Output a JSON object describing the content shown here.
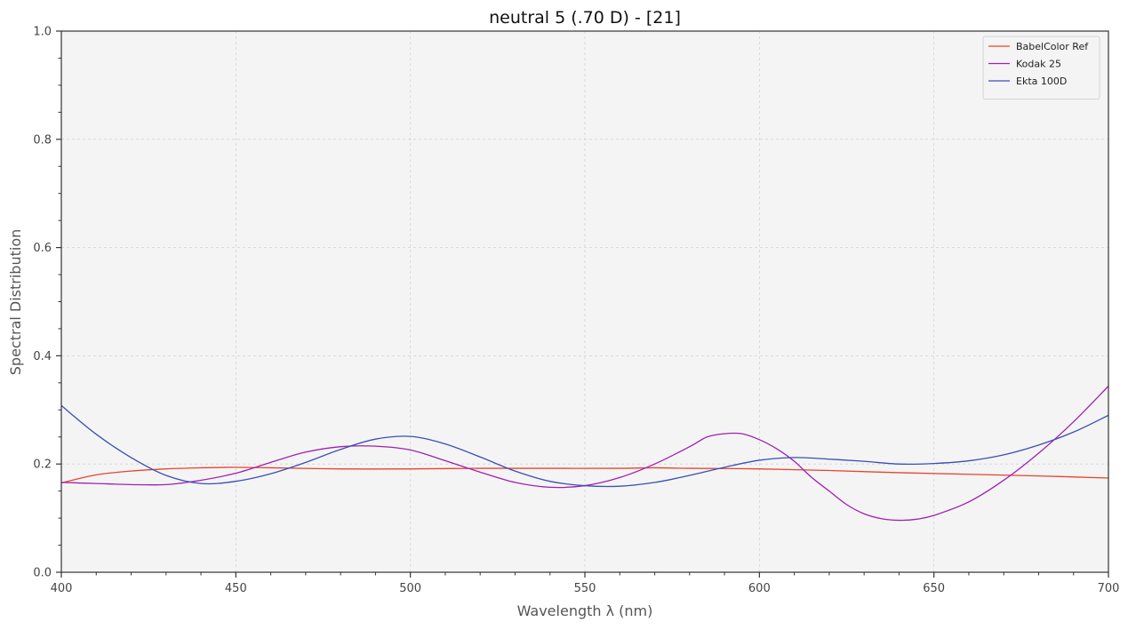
{
  "chart_data": {
    "type": "line",
    "title": "neutral 5 (.70 D) - [21]",
    "xlabel": "Wavelength λ (nm)",
    "ylabel": "Spectral Distribution",
    "xlim": [
      400,
      700
    ],
    "ylim": [
      0.0,
      1.0
    ],
    "xticks": [
      400,
      450,
      500,
      550,
      600,
      650,
      700
    ],
    "xtick_labels": [
      "400",
      "450",
      "500",
      "550",
      "600",
      "650",
      "700"
    ],
    "yticks": [
      0.0,
      0.2,
      0.4,
      0.6,
      0.8,
      1.0
    ],
    "ytick_labels": [
      "0.0",
      "0.2",
      "0.4",
      "0.6",
      "0.8",
      "1.0"
    ],
    "grid": true,
    "legend_position": "top-right",
    "series": [
      {
        "name": "BabelColor Ref",
        "color": "#e8432e",
        "x": [
          400,
          410,
          420,
          430,
          440,
          450,
          460,
          480,
          500,
          520,
          540,
          560,
          570,
          580,
          600,
          620,
          640,
          660,
          680,
          700
        ],
        "y": [
          0.165,
          0.18,
          0.187,
          0.191,
          0.193,
          0.194,
          0.193,
          0.191,
          0.191,
          0.192,
          0.192,
          0.192,
          0.193,
          0.192,
          0.191,
          0.188,
          0.184,
          0.181,
          0.178,
          0.174
        ]
      },
      {
        "name": "Kodak 25",
        "color": "#a020b0",
        "x": [
          400,
          410,
          420,
          430,
          440,
          450,
          460,
          470,
          480,
          490,
          500,
          510,
          520,
          530,
          540,
          550,
          560,
          570,
          580,
          585,
          590,
          595,
          600,
          605,
          610,
          615,
          620,
          625,
          630,
          635,
          640,
          645,
          650,
          660,
          670,
          680,
          690,
          700
        ],
        "y": [
          0.166,
          0.164,
          0.162,
          0.162,
          0.17,
          0.183,
          0.203,
          0.222,
          0.232,
          0.233,
          0.226,
          0.206,
          0.185,
          0.166,
          0.157,
          0.16,
          0.175,
          0.2,
          0.232,
          0.25,
          0.256,
          0.256,
          0.245,
          0.228,
          0.205,
          0.175,
          0.15,
          0.125,
          0.108,
          0.099,
          0.096,
          0.098,
          0.105,
          0.13,
          0.17,
          0.22,
          0.278,
          0.344
        ]
      },
      {
        "name": "Ekta 100D",
        "color": "#3a4fb5",
        "x": [
          400,
          410,
          420,
          430,
          440,
          450,
          460,
          470,
          480,
          490,
          500,
          510,
          520,
          530,
          540,
          550,
          560,
          570,
          580,
          590,
          600,
          610,
          620,
          630,
          640,
          650,
          660,
          670,
          680,
          690,
          700
        ],
        "y": [
          0.308,
          0.255,
          0.212,
          0.179,
          0.164,
          0.168,
          0.182,
          0.203,
          0.227,
          0.246,
          0.251,
          0.237,
          0.213,
          0.187,
          0.168,
          0.16,
          0.159,
          0.166,
          0.179,
          0.194,
          0.207,
          0.212,
          0.209,
          0.205,
          0.2,
          0.201,
          0.206,
          0.217,
          0.235,
          0.259,
          0.29
        ]
      }
    ]
  }
}
